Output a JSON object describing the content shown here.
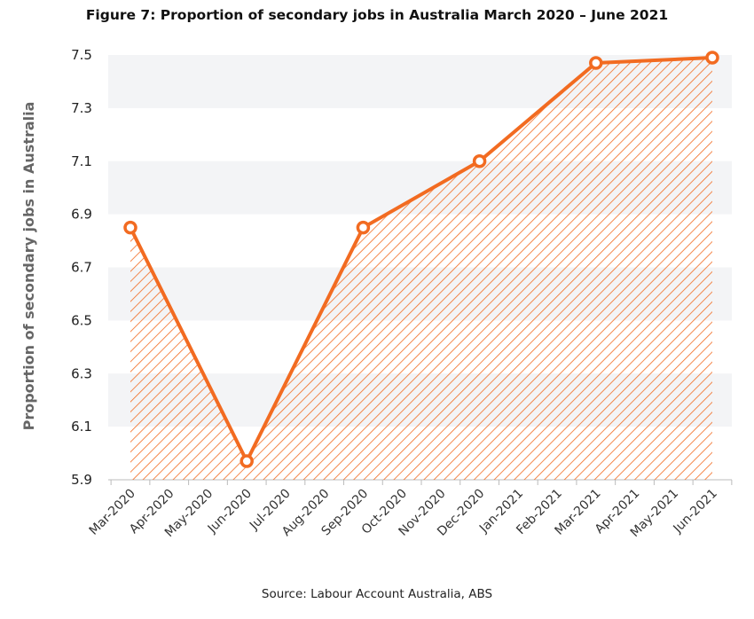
{
  "chart_data": {
    "type": "area",
    "title": "Figure 7: Proportion of secondary jobs in Australia March 2020 – June 2021",
    "xlabel": "",
    "ylabel": "Proportion of secondary jobs in Australia",
    "source": "Source: Labour Account Australia, ABS",
    "ylim": [
      5.9,
      7.5
    ],
    "yticks": [
      "5.9",
      "6.1",
      "6.3",
      "6.5",
      "6.7",
      "6.9",
      "7.1",
      "7.3",
      "7.5"
    ],
    "categories": [
      "Mar-2020",
      "Apr-2020",
      "May-2020",
      "Jun-2020",
      "Jul-2020",
      "Aug-2020",
      "Sep-2020",
      "Oct-2020",
      "Nov-2020",
      "Dec-2020",
      "Jan-2021",
      "Feb-2021",
      "Mar-2021",
      "Apr-2021",
      "May-2021",
      "Jun-2021"
    ],
    "series": [
      {
        "name": "Proportion of secondary jobs",
        "points": [
          {
            "x": "Mar-2020",
            "y": 6.85
          },
          {
            "x": "Jun-2020",
            "y": 5.97
          },
          {
            "x": "Sep-2020",
            "y": 6.85
          },
          {
            "x": "Dec-2020",
            "y": 7.1
          },
          {
            "x": "Mar-2021",
            "y": 7.47
          },
          {
            "x": "Jun-2021",
            "y": 7.49
          }
        ],
        "color": "#f26b21"
      }
    ],
    "band_color": "#f3f4f6"
  }
}
